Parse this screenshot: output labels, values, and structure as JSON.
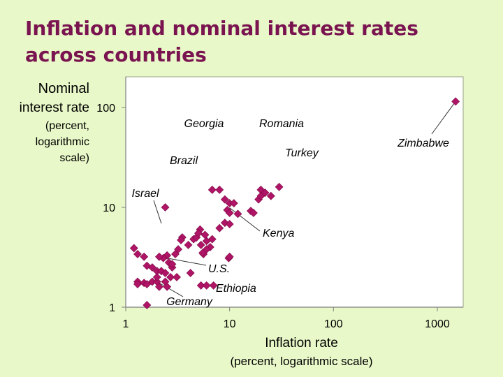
{
  "title": "Inflation and nominal interest rates across countries",
  "colors": {
    "background": "#e8f8c8",
    "plot_bg": "#ffffff",
    "title": "#7a1450",
    "marker": "#b01466",
    "marker_stroke": "#7a0a44"
  },
  "chart_data": {
    "type": "scatter",
    "title": "Inflation and nominal interest rates across countries",
    "xlabel": "Inflation rate",
    "xlabel_sub": "(percent, logarithmic scale)",
    "ylabel_lines": [
      "Nominal",
      "interest rate",
      "(percent,",
      "logarithmic",
      "scale)"
    ],
    "xscale": "log",
    "yscale": "log",
    "xlim": [
      1,
      3000
    ],
    "ylim": [
      1,
      200
    ],
    "xticks": [
      1,
      10,
      100,
      1000
    ],
    "xtick_labels": [
      "1",
      "10",
      "100",
      "1000"
    ],
    "yticks": [
      1,
      10,
      100
    ],
    "ytick_labels": [
      "1",
      "10",
      "100"
    ],
    "grid": false,
    "annotations": [
      {
        "text": "Georgia",
        "point": [
          6.8,
          15.0
        ]
      },
      {
        "text": "Romania",
        "point": [
          20.0,
          15.0
        ]
      },
      {
        "text": "Turkey",
        "point": [
          30.0,
          16.0
        ]
      },
      {
        "text": "Zimbabwe",
        "point": [
          1500.0,
          115.0
        ]
      },
      {
        "text": "Brazil",
        "point": [
          7.5,
          9.1
        ]
      },
      {
        "text": "Israel",
        "point": [
          2.2,
          6.9
        ]
      },
      {
        "text": "Kenya",
        "point": [
          10.0,
          9.9
        ]
      },
      {
        "text": "U.S.",
        "point": [
          2.5,
          3.1
        ]
      },
      {
        "text": "Ethiopia",
        "point": [
          6.0,
          1.65
        ]
      },
      {
        "text": "Germany",
        "point": [
          2.0,
          1.8
        ]
      }
    ],
    "points": [
      [
        1500,
        115
      ],
      [
        6.8,
        15
      ],
      [
        20,
        15
      ],
      [
        30,
        16
      ],
      [
        22,
        14
      ],
      [
        19,
        12
      ],
      [
        20,
        13
      ],
      [
        25,
        13
      ],
      [
        9,
        12
      ],
      [
        8,
        15
      ],
      [
        10,
        11
      ],
      [
        11,
        11
      ],
      [
        9.5,
        9.4
      ],
      [
        10,
        8.8
      ],
      [
        12,
        8.6
      ],
      [
        16,
        9.2
      ],
      [
        17,
        8.8
      ],
      [
        2.4,
        10
      ],
      [
        9,
        7.0
      ],
      [
        10,
        6.8
      ],
      [
        8,
        6.2
      ],
      [
        6.8,
        4.8
      ],
      [
        5.8,
        5.3
      ],
      [
        5.2,
        6.0
      ],
      [
        4.5,
        4.8
      ],
      [
        4.8,
        5.0
      ],
      [
        5.0,
        5.5
      ],
      [
        5.3,
        4.2
      ],
      [
        6.0,
        4.6
      ],
      [
        6.5,
        4.0
      ],
      [
        5.6,
        3.4
      ],
      [
        3.5,
        5.0
      ],
      [
        3.4,
        4.7
      ],
      [
        4.0,
        4.2
      ],
      [
        6.0,
        3.8
      ],
      [
        5.5,
        3.5
      ],
      [
        3.2,
        3.8
      ],
      [
        3.0,
        3.4
      ],
      [
        2.5,
        3.3
      ],
      [
        2.3,
        3.1
      ],
      [
        2.6,
        2.8
      ],
      [
        2.8,
        2.5
      ],
      [
        1.2,
        3.9
      ],
      [
        1.3,
        3.4
      ],
      [
        1.5,
        3.2
      ],
      [
        1.6,
        2.6
      ],
      [
        2.1,
        3.2
      ],
      [
        1.8,
        2.5
      ],
      [
        2.0,
        2.3
      ],
      [
        2.2,
        2.3
      ],
      [
        2.4,
        2.2
      ],
      [
        2.7,
        2.0
      ],
      [
        3.1,
        2.0
      ],
      [
        4.2,
        2.2
      ],
      [
        5.3,
        1.65
      ],
      [
        6.0,
        1.65
      ],
      [
        1.3,
        1.8
      ],
      [
        1.5,
        1.75
      ],
      [
        1.8,
        1.8
      ],
      [
        2.0,
        1.8
      ],
      [
        2.4,
        1.8
      ],
      [
        1.3,
        1.7
      ],
      [
        1.6,
        1.7
      ],
      [
        2.1,
        1.6
      ],
      [
        2.5,
        1.6
      ],
      [
        9.8,
        3.1
      ],
      [
        10,
        3.2
      ],
      [
        1.6,
        1.05
      ],
      [
        2.8,
        2.7
      ],
      [
        2.0,
        2.0
      ],
      [
        7.0,
        1.65
      ]
    ]
  }
}
